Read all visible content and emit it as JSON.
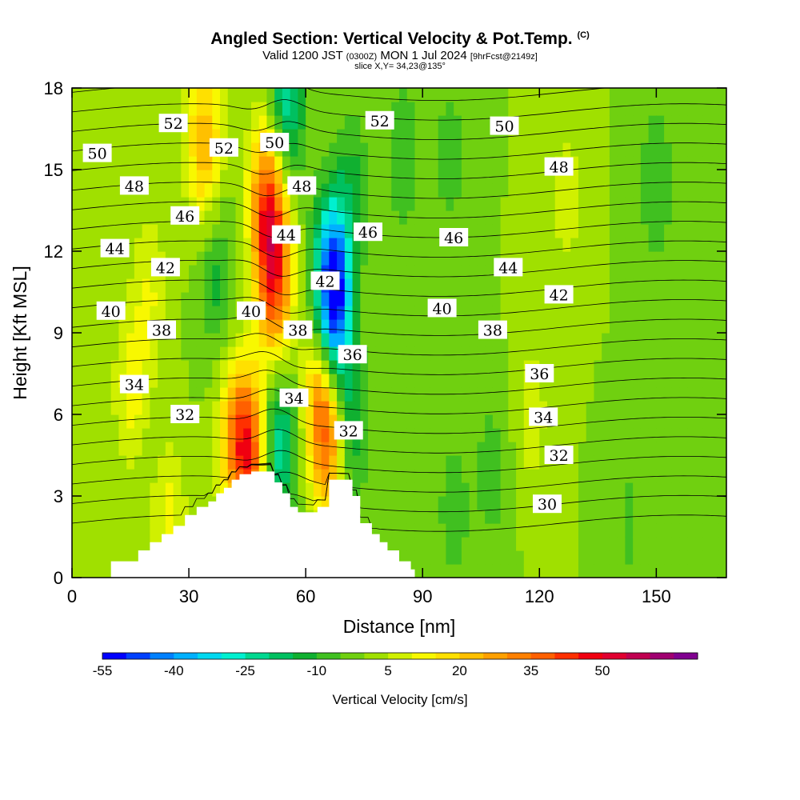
{
  "header": {
    "title": "Angled Section: Vertical Velocity & Pot.Temp.",
    "title_mark": "(C)",
    "valid_prefix": "Valid 1200 JST",
    "valid_utc": "(0300Z)",
    "valid_date": "MON 1 Jul 2024",
    "forecast": "[9hrFcst@2149z]",
    "slice": "slice X,Y= 34,23@135°"
  },
  "chart_data": {
    "type": "heatmap",
    "xlabel": "Distance [nm]",
    "ylabel": "Height [Kft MSL]",
    "xlim": [
      0,
      168
    ],
    "ylim": [
      0,
      18
    ],
    "x_ticks": [
      "0",
      "30",
      "60",
      "90",
      "120",
      "150"
    ],
    "y_ticks": [
      "0",
      "3",
      "6",
      "9",
      "12",
      "15",
      "18"
    ],
    "x_tick_values": [
      0,
      30,
      60,
      90,
      120,
      150
    ],
    "y_tick_values": [
      0,
      3,
      6,
      9,
      12,
      15,
      18
    ],
    "terrain_profile": [
      [
        10,
        0.6
      ],
      [
        13,
        0.6
      ],
      [
        17,
        1.0
      ],
      [
        20,
        1.3
      ],
      [
        23,
        1.6
      ],
      [
        26,
        1.9
      ],
      [
        29,
        2.3
      ],
      [
        32,
        2.6
      ],
      [
        35,
        2.8
      ],
      [
        37,
        3.1
      ],
      [
        39,
        3.3
      ],
      [
        41,
        3.6
      ],
      [
        43,
        3.8
      ],
      [
        46,
        3.9
      ],
      [
        50,
        3.9
      ],
      [
        52,
        3.5
      ],
      [
        54,
        3.1
      ],
      [
        56,
        2.6
      ],
      [
        58,
        2.4
      ],
      [
        61,
        2.4
      ],
      [
        63,
        2.6
      ],
      [
        66,
        3.6
      ],
      [
        70,
        3.6
      ],
      [
        72,
        3.0
      ],
      [
        74,
        2.0
      ],
      [
        77,
        1.6
      ],
      [
        79,
        1.3
      ],
      [
        81,
        1.0
      ],
      [
        84,
        0.6
      ],
      [
        87,
        0.3
      ]
    ],
    "velocity_features": [
      {
        "x": 52,
        "y": 11.0,
        "value": 40
      },
      {
        "x": 50,
        "y": 14.0,
        "value": 35
      },
      {
        "x": 46,
        "y": 4.5,
        "value": 35
      },
      {
        "x": 42,
        "y": 5.2,
        "value": 25
      },
      {
        "x": 34,
        "y": 16.0,
        "value": 25
      },
      {
        "x": 64,
        "y": 6.5,
        "value": 30
      },
      {
        "x": 67,
        "y": 5.0,
        "value": 25
      },
      {
        "x": 67,
        "y": 11.2,
        "value": -40
      },
      {
        "x": 67,
        "y": 9.2,
        "value": -30
      },
      {
        "x": 55,
        "y": 17.5,
        "value": -25
      },
      {
        "x": 53,
        "y": 4.8,
        "value": -25
      },
      {
        "x": 71,
        "y": 5.5,
        "value": -20
      },
      {
        "x": 72,
        "y": 14.5,
        "value": -10
      },
      {
        "x": 85,
        "y": 15.5,
        "value": -10
      },
      {
        "x": 37,
        "y": 11.0,
        "value": -12
      },
      {
        "x": 97,
        "y": 15.5,
        "value": -8
      },
      {
        "x": 150,
        "y": 14.5,
        "value": -10
      },
      {
        "x": 98,
        "y": 2.3,
        "value": -8
      },
      {
        "x": 108,
        "y": 3.8,
        "value": -8
      },
      {
        "x": 143,
        "y": 2.0,
        "value": -6
      },
      {
        "x": 20,
        "y": 10.5,
        "value": 10
      },
      {
        "x": 15,
        "y": 7.0,
        "value": 12
      },
      {
        "x": 118,
        "y": 6.0,
        "value": 8
      },
      {
        "x": 25,
        "y": 2.0,
        "value": 12
      },
      {
        "x": 127,
        "y": 14.0,
        "value": 8
      }
    ],
    "theta_contour_levels": [
      30,
      31,
      32,
      33,
      34,
      35,
      36,
      37,
      38,
      39,
      40,
      41,
      42,
      43,
      44,
      45,
      46,
      47,
      48,
      49,
      50,
      51,
      52
    ],
    "theta_labels": [
      {
        "text": "52",
        "x": 26,
        "y": 16.7
      },
      {
        "text": "50",
        "x": 6.5,
        "y": 15.6
      },
      {
        "text": "52",
        "x": 39,
        "y": 15.8
      },
      {
        "text": "50",
        "x": 52,
        "y": 16.0
      },
      {
        "text": "52",
        "x": 79,
        "y": 16.8
      },
      {
        "text": "50",
        "x": 111,
        "y": 16.6
      },
      {
        "text": "48",
        "x": 16,
        "y": 14.4
      },
      {
        "text": "48",
        "x": 59,
        "y": 14.4
      },
      {
        "text": "48",
        "x": 125,
        "y": 15.1
      },
      {
        "text": "46",
        "x": 29,
        "y": 13.3
      },
      {
        "text": "44",
        "x": 55,
        "y": 12.6
      },
      {
        "text": "46",
        "x": 76,
        "y": 12.7
      },
      {
        "text": "46",
        "x": 98,
        "y": 12.5
      },
      {
        "text": "44",
        "x": 11,
        "y": 12.1
      },
      {
        "text": "42",
        "x": 24,
        "y": 11.4
      },
      {
        "text": "42",
        "x": 65,
        "y": 10.9
      },
      {
        "text": "44",
        "x": 112,
        "y": 11.4
      },
      {
        "text": "42",
        "x": 125,
        "y": 10.4
      },
      {
        "text": "40",
        "x": 10,
        "y": 9.8
      },
      {
        "text": "40",
        "x": 46,
        "y": 9.8
      },
      {
        "text": "40",
        "x": 95,
        "y": 9.9
      },
      {
        "text": "38",
        "x": 23,
        "y": 9.1
      },
      {
        "text": "38",
        "x": 58,
        "y": 9.1
      },
      {
        "text": "38",
        "x": 108,
        "y": 9.1
      },
      {
        "text": "36",
        "x": 72,
        "y": 8.2
      },
      {
        "text": "36",
        "x": 120,
        "y": 7.5
      },
      {
        "text": "34",
        "x": 16,
        "y": 7.1
      },
      {
        "text": "34",
        "x": 57,
        "y": 6.6
      },
      {
        "text": "34",
        "x": 121,
        "y": 5.9
      },
      {
        "text": "32",
        "x": 29,
        "y": 6.0
      },
      {
        "text": "32",
        "x": 71,
        "y": 5.4
      },
      {
        "text": "32",
        "x": 125,
        "y": 4.5
      },
      {
        "text": "30",
        "x": 122,
        "y": 2.7
      }
    ]
  },
  "colorbar": {
    "title": "Vertical Velocity [cm/s]",
    "tick_labels": [
      "-55",
      "-40",
      "-25",
      "-10",
      "5",
      "20",
      "35",
      "50"
    ],
    "tick_values": [
      -55,
      -40,
      -25,
      -10,
      5,
      20,
      35,
      50
    ],
    "min": -55,
    "max": 65,
    "step": 5,
    "colors": [
      "#0000ff",
      "#0040ff",
      "#0080ff",
      "#00b0ff",
      "#00d8f0",
      "#00f0d0",
      "#00d890",
      "#00c060",
      "#10b030",
      "#40c020",
      "#70d010",
      "#a0e000",
      "#d0f000",
      "#f8f800",
      "#ffe000",
      "#ffc000",
      "#ffa000",
      "#ff8000",
      "#ff6000",
      "#ff3000",
      "#f00010",
      "#e00030",
      "#c00050",
      "#a00070",
      "#800090"
    ]
  }
}
